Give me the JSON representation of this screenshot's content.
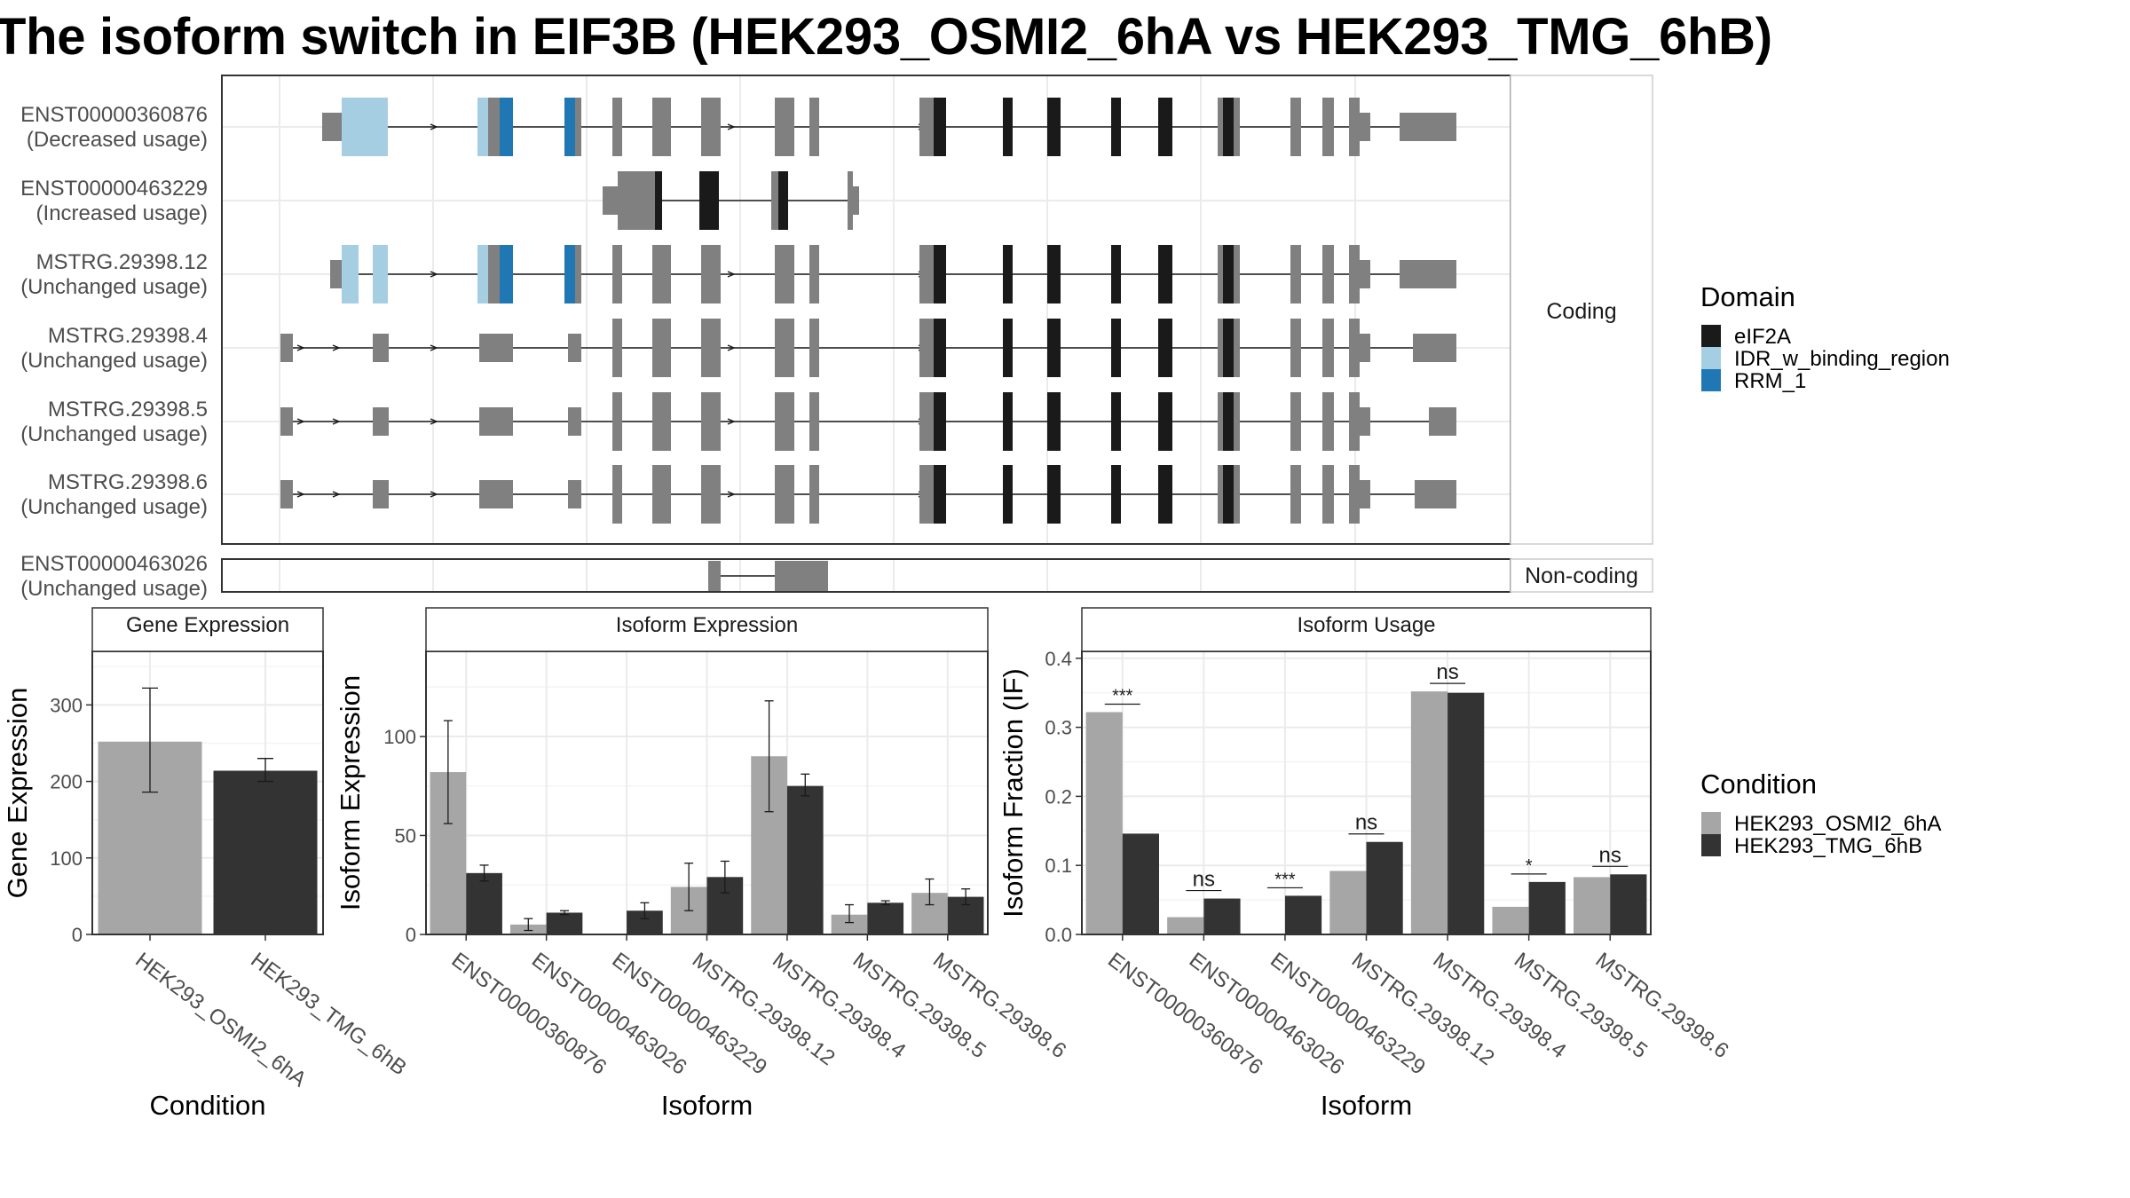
{
  "title": "The isoform switch in EIF3B (HEK293_OSMI2_6hA vs HEK293_TMG_6hB)",
  "colors": {
    "eIF2A": "#1a1a1a",
    "IDR_w_binding_region": "#a6cee3",
    "RRM_1": "#1f78b4",
    "exon": "#808080",
    "cond_a": "#a6a6a6",
    "cond_b": "#333333"
  },
  "transcripts": {
    "coding_strip": "Coding",
    "noncoding_strip": "Non-coding",
    "rows": [
      {
        "name": "ENST00000360876",
        "status": "(Decreased usage)"
      },
      {
        "name": "ENST00000463229",
        "status": "(Increased usage)"
      },
      {
        "name": "MSTRG.29398.12",
        "status": "(Unchanged usage)"
      },
      {
        "name": "MSTRG.29398.4",
        "status": "(Unchanged usage)"
      },
      {
        "name": "MSTRG.29398.5",
        "status": "(Unchanged usage)"
      },
      {
        "name": "MSTRG.29398.6",
        "status": "(Unchanged usage)"
      },
      {
        "name": "ENST00000463026",
        "status": "(Unchanged usage)"
      }
    ]
  },
  "legend_domain": {
    "title": "Domain",
    "items": [
      {
        "label": "eIF2A",
        "color": "#1a1a1a"
      },
      {
        "label": "IDR_w_binding_region",
        "color": "#a6cee3"
      },
      {
        "label": "RRM_1",
        "color": "#1f78b4"
      }
    ]
  },
  "legend_condition": {
    "title": "Condition",
    "items": [
      {
        "label": "HEK293_OSMI2_6hA",
        "color": "#a6a6a6"
      },
      {
        "label": "HEK293_TMG_6hB",
        "color": "#333333"
      }
    ]
  },
  "chart_data": [
    {
      "type": "bar",
      "title": "Gene Expression",
      "xlabel": "Condition",
      "ylabel": "Gene Expression",
      "ylim": [
        0,
        370
      ],
      "yticks": [
        0,
        100,
        200,
        300
      ],
      "categories": [
        "HEK293_OSMI2_6hA",
        "HEK293_TMG_6hB"
      ],
      "values": [
        252,
        214
      ],
      "err_low": [
        186,
        200
      ],
      "err_high": [
        322,
        230
      ]
    },
    {
      "type": "bar",
      "title": "Isoform Expression",
      "xlabel": "Isoform",
      "ylabel": "Isoform Expression",
      "ylim": [
        0,
        143
      ],
      "yticks": [
        0,
        50,
        100
      ],
      "categories": [
        "ENST00000360876",
        "ENST00000463026",
        "ENST00000463229",
        "MSTRG.29398.12",
        "MSTRG.29398.4",
        "MSTRG.29398.5",
        "MSTRG.29398.6"
      ],
      "series": [
        {
          "name": "HEK293_OSMI2_6hA",
          "values": [
            82,
            5,
            0,
            24,
            90,
            10,
            21
          ],
          "err_low": [
            56,
            2,
            0,
            12,
            62,
            6,
            15
          ],
          "err_high": [
            108,
            8,
            0,
            36,
            118,
            15,
            28
          ]
        },
        {
          "name": "HEK293_TMG_6hB",
          "values": [
            31,
            11,
            12,
            29,
            75,
            16,
            19
          ],
          "err_low": [
            27,
            10,
            8,
            21,
            70,
            15,
            15
          ],
          "err_high": [
            35,
            12,
            16,
            37,
            81,
            17,
            23
          ]
        }
      ]
    },
    {
      "type": "bar",
      "title": "Isoform Usage",
      "xlabel": "Isoform",
      "ylabel": "Isoform Fraction (IF)",
      "ylim": [
        0,
        0.41
      ],
      "yticks": [
        0.0,
        0.1,
        0.2,
        0.3,
        0.4
      ],
      "categories": [
        "ENST00000360876",
        "ENST00000463026",
        "ENST00000463229",
        "MSTRG.29398.12",
        "MSTRG.29398.4",
        "MSTRG.29398.5",
        "MSTRG.29398.6"
      ],
      "series": [
        {
          "name": "HEK293_OSMI2_6hA",
          "values": [
            0.322,
            0.025,
            0.0,
            0.092,
            0.352,
            0.04,
            0.083
          ]
        },
        {
          "name": "HEK293_TMG_6hB",
          "values": [
            0.146,
            0.052,
            0.056,
            0.134,
            0.35,
            0.076,
            0.087
          ]
        }
      ],
      "significance": [
        "***",
        "ns",
        "***",
        "ns",
        "ns",
        "*",
        "ns"
      ]
    }
  ]
}
